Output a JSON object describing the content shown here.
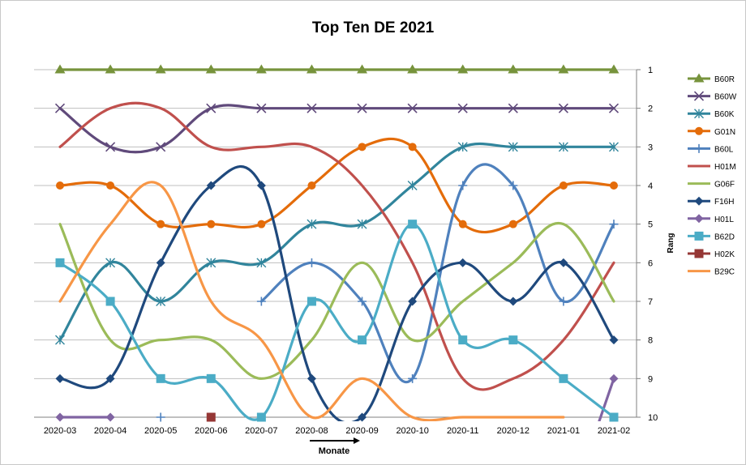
{
  "chart_data": {
    "type": "line",
    "title": "Top Ten DE 2021",
    "xlabel": "Monate",
    "ylabel": "Rang",
    "x": [
      "2020-03",
      "2020-04",
      "2020-05",
      "2020-06",
      "2020-07",
      "2020-08",
      "2020-09",
      "2020-10",
      "2020-11",
      "2020-12",
      "2021-01",
      "2021-02"
    ],
    "ylim": [
      1,
      10
    ],
    "y_reversed": true,
    "y_axis_side": "right",
    "yticks": [
      1,
      2,
      3,
      4,
      5,
      6,
      7,
      8,
      9,
      10
    ],
    "grid": "horizontal",
    "legend_position": "right",
    "series": [
      {
        "name": "B60R",
        "color": "#77933C",
        "marker": "triangle",
        "values": [
          1,
          1,
          1,
          1,
          1,
          1,
          1,
          1,
          1,
          1,
          1,
          1
        ]
      },
      {
        "name": "B60W",
        "color": "#604A7B",
        "marker": "x",
        "values": [
          2,
          3,
          3,
          2,
          2,
          2,
          2,
          2,
          2,
          2,
          2,
          2
        ]
      },
      {
        "name": "B60K",
        "color": "#31859C",
        "marker": "star",
        "values": [
          8,
          6,
          7,
          6,
          6,
          5,
          5,
          4,
          3,
          3,
          3,
          3
        ]
      },
      {
        "name": "G01N",
        "color": "#E46C0A",
        "marker": "circle",
        "values": [
          4,
          4,
          5,
          5,
          5,
          4,
          3,
          3,
          5,
          5,
          4,
          4
        ]
      },
      {
        "name": "B60L",
        "color": "#4F81BD",
        "marker": "plus",
        "values": [
          null,
          null,
          10,
          null,
          7,
          6,
          7,
          9,
          4,
          4,
          7,
          5
        ]
      },
      {
        "name": "H01M",
        "color": "#C0504D",
        "marker": "none",
        "values": [
          3,
          2,
          2,
          3,
          3,
          3,
          4,
          6,
          9,
          9,
          8,
          6
        ]
      },
      {
        "name": "G06F",
        "color": "#9BBB59",
        "marker": "none",
        "values": [
          5,
          8,
          8,
          8,
          9,
          8,
          6,
          8,
          7,
          6,
          5,
          7
        ]
      },
      {
        "name": "F16H",
        "color": "#1F497D",
        "marker": "diamond",
        "values": [
          9,
          9,
          6,
          4,
          4,
          9,
          10,
          7,
          6,
          7,
          6,
          8
        ]
      },
      {
        "name": "H01L",
        "color": "#8064A2",
        "marker": "diamond",
        "values": [
          10,
          10,
          null,
          null,
          null,
          null,
          null,
          null,
          null,
          null,
          null,
          9
        ]
      },
      {
        "name": "B62D",
        "color": "#4BACC6",
        "marker": "square",
        "values": [
          6,
          7,
          9,
          9,
          10,
          7,
          8,
          5,
          8,
          8,
          9,
          10
        ]
      },
      {
        "name": "H02K",
        "color": "#953735",
        "marker": "square",
        "values": [
          null,
          null,
          null,
          10,
          null,
          null,
          null,
          null,
          null,
          null,
          null,
          null
        ]
      },
      {
        "name": "B29C",
        "color": "#F79646",
        "marker": "none",
        "values": [
          7,
          5,
          4,
          7,
          8,
          10,
          9,
          10,
          10,
          10,
          10,
          null
        ]
      }
    ]
  }
}
